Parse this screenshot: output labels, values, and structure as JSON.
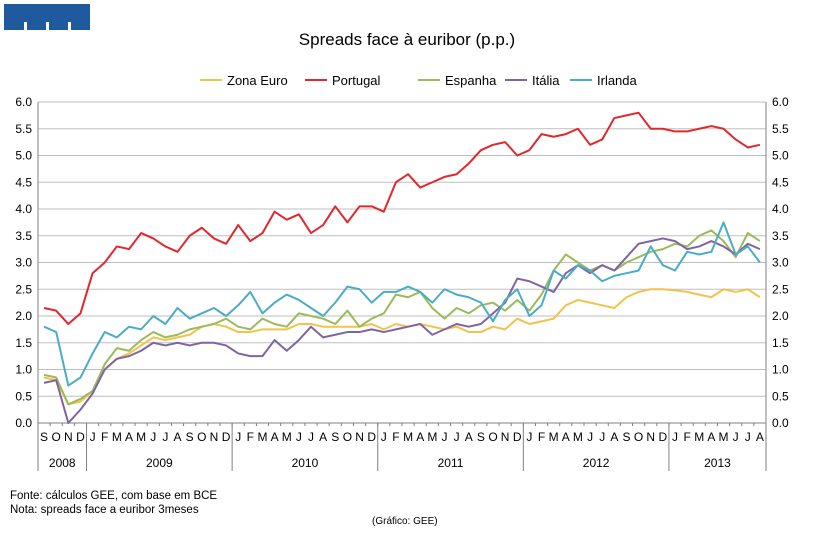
{
  "chart_data": {
    "type": "line",
    "title": "Spreads face à euribor (p.p.)",
    "ylim": [
      0,
      6
    ],
    "y_ticks": [
      "0.0",
      "0.5",
      "1.0",
      "1.5",
      "2.0",
      "2.5",
      "3.0",
      "3.5",
      "4.0",
      "4.5",
      "5.0",
      "5.5",
      "6.0"
    ],
    "months": [
      "S",
      "O",
      "N",
      "D",
      "J",
      "F",
      "M",
      "A",
      "M",
      "J",
      "J",
      "A",
      "S",
      "O",
      "N",
      "D",
      "J",
      "F",
      "M",
      "A",
      "M",
      "J",
      "J",
      "A",
      "S",
      "O",
      "N",
      "D",
      "J",
      "F",
      "M",
      "A",
      "M",
      "J",
      "J",
      "A",
      "S",
      "O",
      "N",
      "D",
      "J",
      "F",
      "M",
      "A",
      "M",
      "J",
      "J",
      "A",
      "S",
      "O",
      "N",
      "D",
      "J",
      "F",
      "M",
      "A",
      "M",
      "J",
      "J",
      "A"
    ],
    "years": [
      {
        "label": "2008",
        "start": 0,
        "count": 4
      },
      {
        "label": "2009",
        "start": 4,
        "count": 12
      },
      {
        "label": "2010",
        "start": 16,
        "count": 12
      },
      {
        "label": "2011",
        "start": 28,
        "count": 12
      },
      {
        "label": "2012",
        "start": 40,
        "count": 12
      },
      {
        "label": "2013",
        "start": 52,
        "count": 8
      }
    ],
    "series": [
      {
        "name": "Zona Euro",
        "color": "#F2C24C",
        "values": [
          0.85,
          0.8,
          0.35,
          0.4,
          0.6,
          1.0,
          1.2,
          1.3,
          1.45,
          1.6,
          1.55,
          1.6,
          1.65,
          1.8,
          1.85,
          1.8,
          1.7,
          1.7,
          1.75,
          1.75,
          1.75,
          1.85,
          1.85,
          1.8,
          1.8,
          1.8,
          1.8,
          1.85,
          1.75,
          1.85,
          1.8,
          1.85,
          1.8,
          1.75,
          1.8,
          1.7,
          1.7,
          1.8,
          1.75,
          1.95,
          1.85,
          1.9,
          1.95,
          2.2,
          2.3,
          2.25,
          2.2,
          2.15,
          2.35,
          2.45,
          2.5,
          2.5,
          2.48,
          2.45,
          2.4,
          2.35,
          2.5,
          2.45,
          2.5,
          2.35
        ]
      },
      {
        "name": "Portugal",
        "color": "#E0282E",
        "values": [
          2.15,
          2.1,
          1.85,
          2.05,
          2.8,
          3.0,
          3.3,
          3.25,
          3.55,
          3.45,
          3.3,
          3.2,
          3.5,
          3.65,
          3.45,
          3.35,
          3.7,
          3.4,
          3.55,
          3.95,
          3.8,
          3.9,
          3.55,
          3.7,
          4.05,
          3.75,
          4.05,
          4.05,
          3.95,
          4.5,
          4.65,
          4.4,
          4.5,
          4.6,
          4.65,
          4.85,
          5.1,
          5.2,
          5.25,
          5.0,
          5.1,
          5.4,
          5.35,
          5.4,
          5.5,
          5.2,
          5.3,
          5.7,
          5.75,
          5.8,
          5.5,
          5.5,
          5.45,
          5.45,
          5.5,
          5.55,
          5.5,
          5.3,
          5.15,
          5.2
        ]
      },
      {
        "name": "Espanha",
        "color": "#9BBB59",
        "values": [
          0.9,
          0.85,
          0.35,
          0.45,
          0.6,
          1.1,
          1.4,
          1.35,
          1.55,
          1.7,
          1.6,
          1.65,
          1.75,
          1.8,
          1.85,
          1.95,
          1.8,
          1.75,
          1.95,
          1.85,
          1.8,
          2.05,
          2.0,
          1.95,
          1.85,
          2.1,
          1.8,
          1.95,
          2.05,
          2.4,
          2.35,
          2.45,
          2.15,
          1.95,
          2.15,
          2.05,
          2.2,
          2.25,
          2.1,
          2.3,
          2.1,
          2.4,
          2.85,
          3.15,
          3.0,
          2.85,
          2.95,
          2.85,
          3.0,
          3.1,
          3.2,
          3.25,
          3.35,
          3.3,
          3.5,
          3.6,
          3.4,
          3.1,
          3.55,
          3.4
        ]
      },
      {
        "name": "Itália",
        "color": "#8064A2",
        "values": [
          0.75,
          0.8,
          0.0,
          0.25,
          0.55,
          1.0,
          1.2,
          1.25,
          1.35,
          1.5,
          1.45,
          1.5,
          1.45,
          1.5,
          1.5,
          1.45,
          1.3,
          1.25,
          1.25,
          1.55,
          1.35,
          1.55,
          1.8,
          1.6,
          1.65,
          1.7,
          1.7,
          1.75,
          1.7,
          1.75,
          1.8,
          1.85,
          1.65,
          1.75,
          1.85,
          1.8,
          1.85,
          2.05,
          2.25,
          2.7,
          2.65,
          2.55,
          2.45,
          2.8,
          2.95,
          2.8,
          2.95,
          2.85,
          3.1,
          3.35,
          3.4,
          3.45,
          3.4,
          3.25,
          3.3,
          3.4,
          3.3,
          3.15,
          3.35,
          3.25
        ]
      },
      {
        "name": "Irlanda",
        "color": "#4BACC6",
        "values": [
          1.8,
          1.7,
          0.7,
          0.85,
          1.3,
          1.7,
          1.6,
          1.8,
          1.75,
          2.0,
          1.85,
          2.15,
          1.95,
          2.05,
          2.15,
          2.0,
          2.2,
          2.45,
          2.05,
          2.25,
          2.4,
          2.3,
          2.15,
          2.0,
          2.25,
          2.55,
          2.5,
          2.25,
          2.45,
          2.45,
          2.55,
          2.45,
          2.25,
          2.5,
          2.4,
          2.35,
          2.25,
          1.9,
          2.3,
          2.5,
          2.0,
          2.2,
          2.85,
          2.7,
          2.95,
          2.85,
          2.65,
          2.75,
          2.8,
          2.85,
          3.3,
          2.95,
          2.85,
          3.2,
          3.15,
          3.2,
          3.75,
          3.15,
          3.3,
          3.0
        ]
      }
    ]
  },
  "footer": {
    "source": "Fonte: cálculos GEE, com base em BCE",
    "note": "Nota: spreads face a euribor 3meses",
    "credit": "(Gráfico:  GEE)"
  }
}
